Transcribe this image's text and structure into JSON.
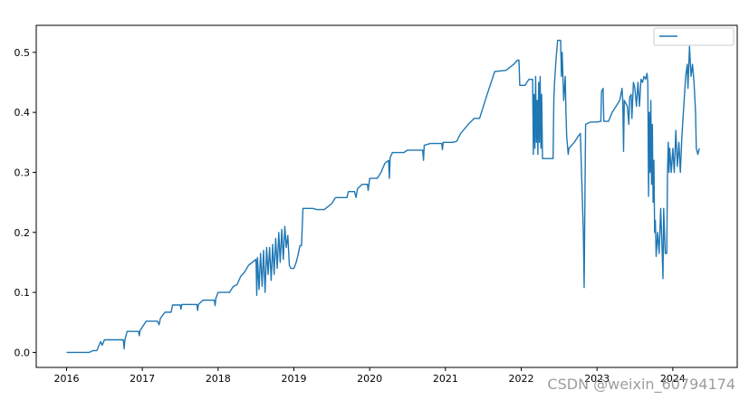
{
  "chart_data": {
    "type": "line",
    "title": "",
    "xlabel": "",
    "ylabel": "",
    "xlim": [
      2015.6,
      2024.85
    ],
    "ylim": [
      -0.025,
      0.545
    ],
    "x_ticks": [
      {
        "value": 2016,
        "label": "2016"
      },
      {
        "value": 2017,
        "label": "2017"
      },
      {
        "value": 2018,
        "label": "2018"
      },
      {
        "value": 2019,
        "label": "2019"
      },
      {
        "value": 2020,
        "label": "2020"
      },
      {
        "value": 2021,
        "label": "2021"
      },
      {
        "value": 2022,
        "label": "2022"
      },
      {
        "value": 2023,
        "label": "2023"
      },
      {
        "value": 2024,
        "label": "2024"
      }
    ],
    "y_ticks": [
      {
        "value": 0.0,
        "label": "0.0"
      },
      {
        "value": 0.1,
        "label": "0.1"
      },
      {
        "value": 0.2,
        "label": "0.2"
      },
      {
        "value": 0.3,
        "label": "0.3"
      },
      {
        "value": 0.4,
        "label": "0.4"
      },
      {
        "value": 0.5,
        "label": "0.5"
      }
    ],
    "grid": false,
    "legend": {
      "position": "top-right",
      "entries": [
        ""
      ]
    },
    "series": [
      {
        "name": "",
        "color": "#1f77b4",
        "points": [
          [
            2016.0,
            0.0
          ],
          [
            2016.3,
            0.0
          ],
          [
            2016.35,
            0.003
          ],
          [
            2016.4,
            0.003
          ],
          [
            2016.45,
            0.018
          ],
          [
            2016.47,
            0.012
          ],
          [
            2016.5,
            0.021
          ],
          [
            2016.7,
            0.021
          ],
          [
            2016.75,
            0.021
          ],
          [
            2016.76,
            0.006
          ],
          [
            2016.77,
            0.021
          ],
          [
            2016.8,
            0.035
          ],
          [
            2016.95,
            0.035
          ],
          [
            2016.96,
            0.028
          ],
          [
            2016.97,
            0.036
          ],
          [
            2017.05,
            0.052
          ],
          [
            2017.2,
            0.052
          ],
          [
            2017.22,
            0.046
          ],
          [
            2017.24,
            0.057
          ],
          [
            2017.3,
            0.067
          ],
          [
            2017.38,
            0.067
          ],
          [
            2017.4,
            0.079
          ],
          [
            2017.5,
            0.079
          ],
          [
            2017.51,
            0.072
          ],
          [
            2017.52,
            0.08
          ],
          [
            2017.72,
            0.08
          ],
          [
            2017.73,
            0.07
          ],
          [
            2017.74,
            0.08
          ],
          [
            2017.8,
            0.087
          ],
          [
            2017.95,
            0.087
          ],
          [
            2017.96,
            0.078
          ],
          [
            2017.97,
            0.09
          ],
          [
            2018.0,
            0.1
          ],
          [
            2018.15,
            0.1
          ],
          [
            2018.2,
            0.11
          ],
          [
            2018.25,
            0.113
          ],
          [
            2018.3,
            0.127
          ],
          [
            2018.35,
            0.134
          ],
          [
            2018.4,
            0.145
          ],
          [
            2018.45,
            0.15
          ],
          [
            2018.5,
            0.155
          ],
          [
            2018.51,
            0.095
          ],
          [
            2018.52,
            0.158
          ],
          [
            2018.54,
            0.105
          ],
          [
            2018.56,
            0.165
          ],
          [
            2018.58,
            0.11
          ],
          [
            2018.6,
            0.17
          ],
          [
            2018.62,
            0.1
          ],
          [
            2018.64,
            0.175
          ],
          [
            2018.66,
            0.13
          ],
          [
            2018.68,
            0.175
          ],
          [
            2018.7,
            0.12
          ],
          [
            2018.72,
            0.18
          ],
          [
            2018.74,
            0.13
          ],
          [
            2018.76,
            0.19
          ],
          [
            2018.78,
            0.14
          ],
          [
            2018.8,
            0.2
          ],
          [
            2018.82,
            0.15
          ],
          [
            2018.84,
            0.205
          ],
          [
            2018.86,
            0.155
          ],
          [
            2018.88,
            0.21
          ],
          [
            2018.9,
            0.175
          ],
          [
            2018.92,
            0.195
          ],
          [
            2018.94,
            0.145
          ],
          [
            2018.96,
            0.14
          ],
          [
            2019.0,
            0.14
          ],
          [
            2019.03,
            0.15
          ],
          [
            2019.05,
            0.16
          ],
          [
            2019.08,
            0.178
          ],
          [
            2019.1,
            0.178
          ],
          [
            2019.12,
            0.24
          ],
          [
            2019.25,
            0.24
          ],
          [
            2019.3,
            0.238
          ],
          [
            2019.4,
            0.238
          ],
          [
            2019.5,
            0.248
          ],
          [
            2019.55,
            0.258
          ],
          [
            2019.7,
            0.258
          ],
          [
            2019.72,
            0.268
          ],
          [
            2019.8,
            0.268
          ],
          [
            2019.82,
            0.258
          ],
          [
            2019.84,
            0.273
          ],
          [
            2019.9,
            0.28
          ],
          [
            2019.97,
            0.28
          ],
          [
            2019.98,
            0.27
          ],
          [
            2020.0,
            0.29
          ],
          [
            2020.1,
            0.29
          ],
          [
            2020.15,
            0.3
          ],
          [
            2020.2,
            0.315
          ],
          [
            2020.25,
            0.32
          ],
          [
            2020.26,
            0.29
          ],
          [
            2020.27,
            0.325
          ],
          [
            2020.3,
            0.333
          ],
          [
            2020.45,
            0.333
          ],
          [
            2020.5,
            0.337
          ],
          [
            2020.7,
            0.337
          ],
          [
            2020.71,
            0.32
          ],
          [
            2020.72,
            0.345
          ],
          [
            2020.8,
            0.348
          ],
          [
            2020.95,
            0.348
          ],
          [
            2020.96,
            0.338
          ],
          [
            2020.97,
            0.35
          ],
          [
            2021.1,
            0.35
          ],
          [
            2021.15,
            0.352
          ],
          [
            2021.2,
            0.365
          ],
          [
            2021.3,
            0.38
          ],
          [
            2021.38,
            0.39
          ],
          [
            2021.45,
            0.39
          ],
          [
            2021.55,
            0.43
          ],
          [
            2021.65,
            0.468
          ],
          [
            2021.8,
            0.47
          ],
          [
            2021.9,
            0.48
          ],
          [
            2021.95,
            0.487
          ],
          [
            2021.97,
            0.487
          ],
          [
            2021.98,
            0.445
          ],
          [
            2022.05,
            0.445
          ],
          [
            2022.1,
            0.455
          ],
          [
            2022.15,
            0.455
          ],
          [
            2022.16,
            0.33
          ],
          [
            2022.17,
            0.43
          ],
          [
            2022.18,
            0.34
          ],
          [
            2022.19,
            0.46
          ],
          [
            2022.2,
            0.35
          ],
          [
            2022.21,
            0.42
          ],
          [
            2022.22,
            0.33
          ],
          [
            2022.23,
            0.45
          ],
          [
            2022.24,
            0.35
          ],
          [
            2022.25,
            0.46
          ],
          [
            2022.26,
            0.34
          ],
          [
            2022.27,
            0.43
          ],
          [
            2022.28,
            0.323
          ],
          [
            2022.42,
            0.323
          ],
          [
            2022.43,
            0.42
          ],
          [
            2022.44,
            0.45
          ],
          [
            2022.46,
            0.49
          ],
          [
            2022.48,
            0.52
          ],
          [
            2022.52,
            0.52
          ],
          [
            2022.53,
            0.46
          ],
          [
            2022.54,
            0.5
          ],
          [
            2022.56,
            0.42
          ],
          [
            2022.58,
            0.46
          ],
          [
            2022.59,
            0.4
          ],
          [
            2022.6,
            0.36
          ],
          [
            2022.62,
            0.33
          ],
          [
            2022.63,
            0.34
          ],
          [
            2022.7,
            0.35
          ],
          [
            2022.75,
            0.36
          ],
          [
            2022.78,
            0.365
          ],
          [
            2022.8,
            0.28
          ],
          [
            2022.82,
            0.2
          ],
          [
            2022.83,
            0.108
          ],
          [
            2022.84,
            0.25
          ],
          [
            2022.85,
            0.38
          ],
          [
            2022.9,
            0.383
          ],
          [
            2022.92,
            0.384
          ],
          [
            2023.0,
            0.384
          ],
          [
            2023.05,
            0.385
          ],
          [
            2023.06,
            0.435
          ],
          [
            2023.08,
            0.44
          ],
          [
            2023.09,
            0.385
          ],
          [
            2023.15,
            0.385
          ],
          [
            2023.2,
            0.4
          ],
          [
            2023.3,
            0.42
          ],
          [
            2023.33,
            0.44
          ],
          [
            2023.34,
            0.42
          ],
          [
            2023.35,
            0.335
          ],
          [
            2023.36,
            0.42
          ],
          [
            2023.4,
            0.41
          ],
          [
            2023.42,
            0.38
          ],
          [
            2023.43,
            0.425
          ],
          [
            2023.45,
            0.43
          ],
          [
            2023.46,
            0.39
          ],
          [
            2023.48,
            0.45
          ],
          [
            2023.5,
            0.44
          ],
          [
            2023.52,
            0.41
          ],
          [
            2023.54,
            0.45
          ],
          [
            2023.56,
            0.41
          ],
          [
            2023.58,
            0.455
          ],
          [
            2023.6,
            0.45
          ],
          [
            2023.62,
            0.46
          ],
          [
            2023.64,
            0.455
          ],
          [
            2023.66,
            0.465
          ],
          [
            2023.67,
            0.45
          ],
          [
            2023.68,
            0.26
          ],
          [
            2023.69,
            0.4
          ],
          [
            2023.7,
            0.3
          ],
          [
            2023.71,
            0.42
          ],
          [
            2023.72,
            0.28
          ],
          [
            2023.73,
            0.38
          ],
          [
            2023.74,
            0.25
          ],
          [
            2023.75,
            0.32
          ],
          [
            2023.76,
            0.2
          ],
          [
            2023.77,
            0.22
          ],
          [
            2023.78,
            0.16
          ],
          [
            2023.8,
            0.2
          ],
          [
            2023.82,
            0.165
          ],
          [
            2023.84,
            0.24
          ],
          [
            2023.86,
            0.165
          ],
          [
            2023.87,
            0.123
          ],
          [
            2023.88,
            0.24
          ],
          [
            2023.9,
            0.165
          ],
          [
            2023.92,
            0.165
          ],
          [
            2023.93,
            0.3
          ],
          [
            2023.94,
            0.35
          ],
          [
            2023.95,
            0.3
          ],
          [
            2023.96,
            0.34
          ],
          [
            2023.98,
            0.3
          ],
          [
            2024.0,
            0.34
          ],
          [
            2024.02,
            0.3
          ],
          [
            2024.04,
            0.37
          ],
          [
            2024.06,
            0.31
          ],
          [
            2024.08,
            0.35
          ],
          [
            2024.1,
            0.3
          ],
          [
            2024.12,
            0.36
          ],
          [
            2024.15,
            0.42
          ],
          [
            2024.17,
            0.46
          ],
          [
            2024.19,
            0.48
          ],
          [
            2024.2,
            0.44
          ],
          [
            2024.22,
            0.51
          ],
          [
            2024.24,
            0.46
          ],
          [
            2024.26,
            0.48
          ],
          [
            2024.28,
            0.45
          ],
          [
            2024.3,
            0.4
          ],
          [
            2024.31,
            0.34
          ],
          [
            2024.33,
            0.33
          ],
          [
            2024.35,
            0.34
          ]
        ]
      }
    ]
  },
  "watermark": "CSDN @weixin_60794174"
}
